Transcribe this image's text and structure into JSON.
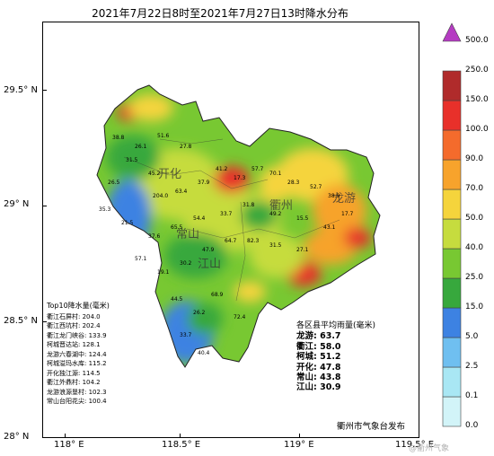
{
  "title": "2021年7月22日8时至2021年7月27日13时降水分布",
  "axes": {
    "y_labels": [
      "29.5° N",
      "29° N",
      "28.5° N",
      "28° N"
    ],
    "x_labels": [
      "118° E",
      "118.5° E",
      "119° E",
      "119.5° E"
    ]
  },
  "county_labels": [
    "开化",
    "衢州",
    "龙游",
    "江山",
    "常山"
  ],
  "top10": {
    "header": "Top10降水量(毫米)",
    "rows": [
      "衢江石屏村: 204.0",
      "衢江西坑村: 202.4",
      "衢江龙门峡谷: 133.9",
      "柯城晋达站: 128.1",
      "龙游六春湖中: 124.4",
      "柯城溢玛水库: 115.2",
      "开化独江源: 114.5",
      "衢江外鼎村: 104.2",
      "龙游浪源垦村: 102.3",
      "常山台阳花尖: 100.4"
    ]
  },
  "county_avg": {
    "header": "各区县平均雨量(毫米)",
    "rows": [
      "龙游: 63.7",
      "衢江: 58.0",
      "柯城: 51.2",
      "开化: 47.8",
      "常山: 43.8",
      "江山: 30.9"
    ]
  },
  "publisher": "衢州市气象台发布",
  "watermark": "@衢州气象",
  "legend": {
    "levels": [
      "0.0",
      "0.1",
      "2.5",
      "5.0",
      "15.0",
      "25.0",
      "40.0",
      "50.0",
      "70.0",
      "90.0",
      "100.0",
      "150.0",
      "250.0",
      "500.0"
    ],
    "colors": [
      "#ffffff",
      "#d2f4f8",
      "#a9e7f4",
      "#6fbff0",
      "#3d82e2",
      "#37a83d",
      "#78c832",
      "#c6dc3e",
      "#f5d43c",
      "#f7a32c",
      "#f46b2c",
      "#e8302a",
      "#b02b2b",
      "#b53cc2"
    ]
  },
  "station_values": [
    "38.8",
    "26.1",
    "51.6",
    "27.8",
    "31.5",
    "45.2",
    "26.5",
    "35.3",
    "21.5",
    "204.0",
    "63.4",
    "37.9",
    "41.2",
    "17.3",
    "57.7",
    "70.1",
    "28.3",
    "52.7",
    "38.9",
    "17.7",
    "43.1",
    "15.5",
    "49.2",
    "31.8",
    "33.7",
    "54.4",
    "65.5",
    "37.6",
    "57.1",
    "19.1",
    "30.2",
    "47.9",
    "64.7",
    "82.3",
    "31.5",
    "27.1",
    "44.5",
    "26.2",
    "68.9",
    "33.7",
    "40.4",
    "72.4"
  ]
}
